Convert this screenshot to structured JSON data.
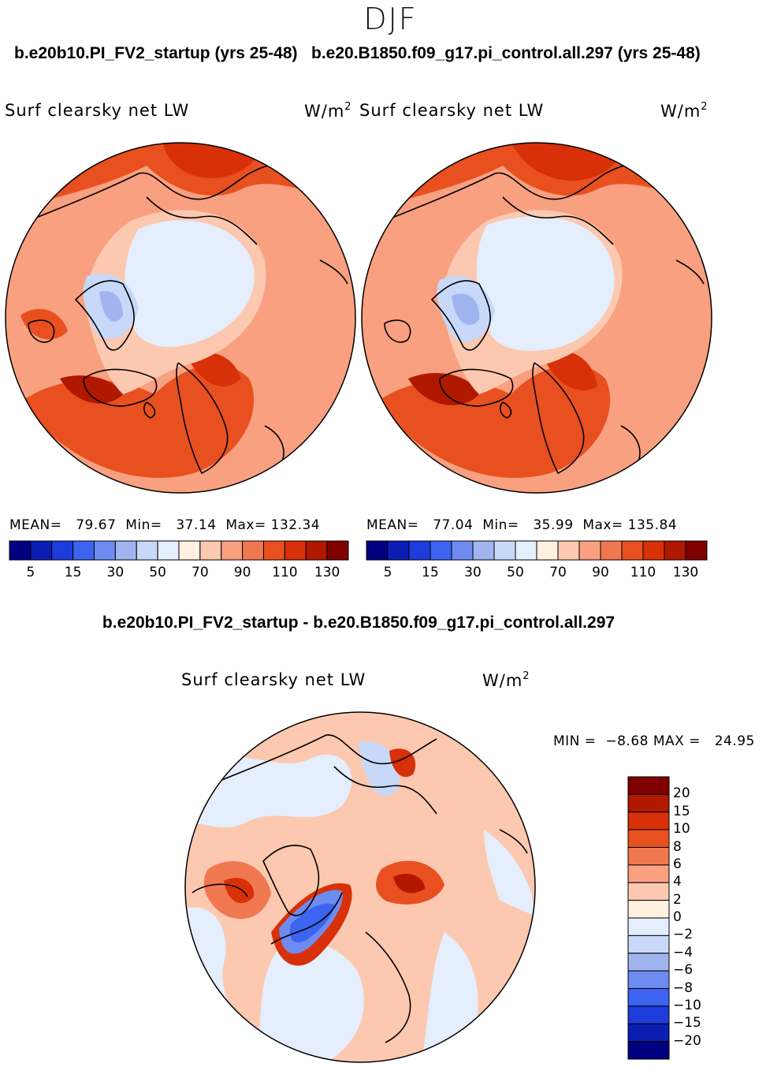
{
  "season": "DJF",
  "panels": [
    {
      "case_title": "b.e20b10.PI_FV2_startup (yrs 25-48)",
      "variable": "Surf clearsky net LW",
      "units": "W/m",
      "units_sup": "2",
      "mean_label": "MEAN=",
      "mean": "79.67",
      "min_label": "Min=",
      "min": "37.14",
      "max_label": "Max=",
      "max": "132.34"
    },
    {
      "case_title": "b.e20.B1850.f09_g17.pi_control.all.297 (yrs 25-48)",
      "variable": "Surf clearsky net LW",
      "units": "W/m",
      "units_sup": "2",
      "mean_label": "MEAN=",
      "mean": "77.04",
      "min_label": "Min=",
      "min": "35.99",
      "max_label": "Max=",
      "max": "135.84"
    }
  ],
  "colorbar_top": {
    "tick_labels": [
      "5",
      "15",
      "30",
      "50",
      "70",
      "90",
      "110",
      "130"
    ],
    "colors": [
      "#000080",
      "#0a1eb4",
      "#1e3cdc",
      "#3c64f0",
      "#6e8cf0",
      "#a0b4f0",
      "#c8d8f8",
      "#e4eefc",
      "#fff0e0",
      "#fcc8b0",
      "#f8a080",
      "#f07850",
      "#e85020",
      "#d83008",
      "#b01800",
      "#800000"
    ]
  },
  "difference": {
    "title": "b.e20b10.PI_FV2_startup - b.e20.B1850.f09_g17.pi_control.all.297",
    "variable": "Surf clearsky net LW",
    "units": "W/m",
    "units_sup": "2",
    "min_label": "MIN =",
    "min": "−8.68",
    "max_label": "MAX =",
    "max": "24.95",
    "colorbar": {
      "tick_labels": [
        "20",
        "15",
        "10",
        "8",
        "6",
        "4",
        "2",
        "0",
        "−2",
        "−4",
        "−6",
        "−8",
        "−10",
        "−15",
        "−20"
      ],
      "colors": [
        "#800000",
        "#b01800",
        "#d83008",
        "#e85020",
        "#f07850",
        "#f8a080",
        "#fcc8b0",
        "#fff0e0",
        "#e4eefc",
        "#c8d8f8",
        "#a0b4f0",
        "#6e8cf0",
        "#3c64f0",
        "#1e3cdc",
        "#0a1eb4",
        "#000080"
      ]
    }
  }
}
